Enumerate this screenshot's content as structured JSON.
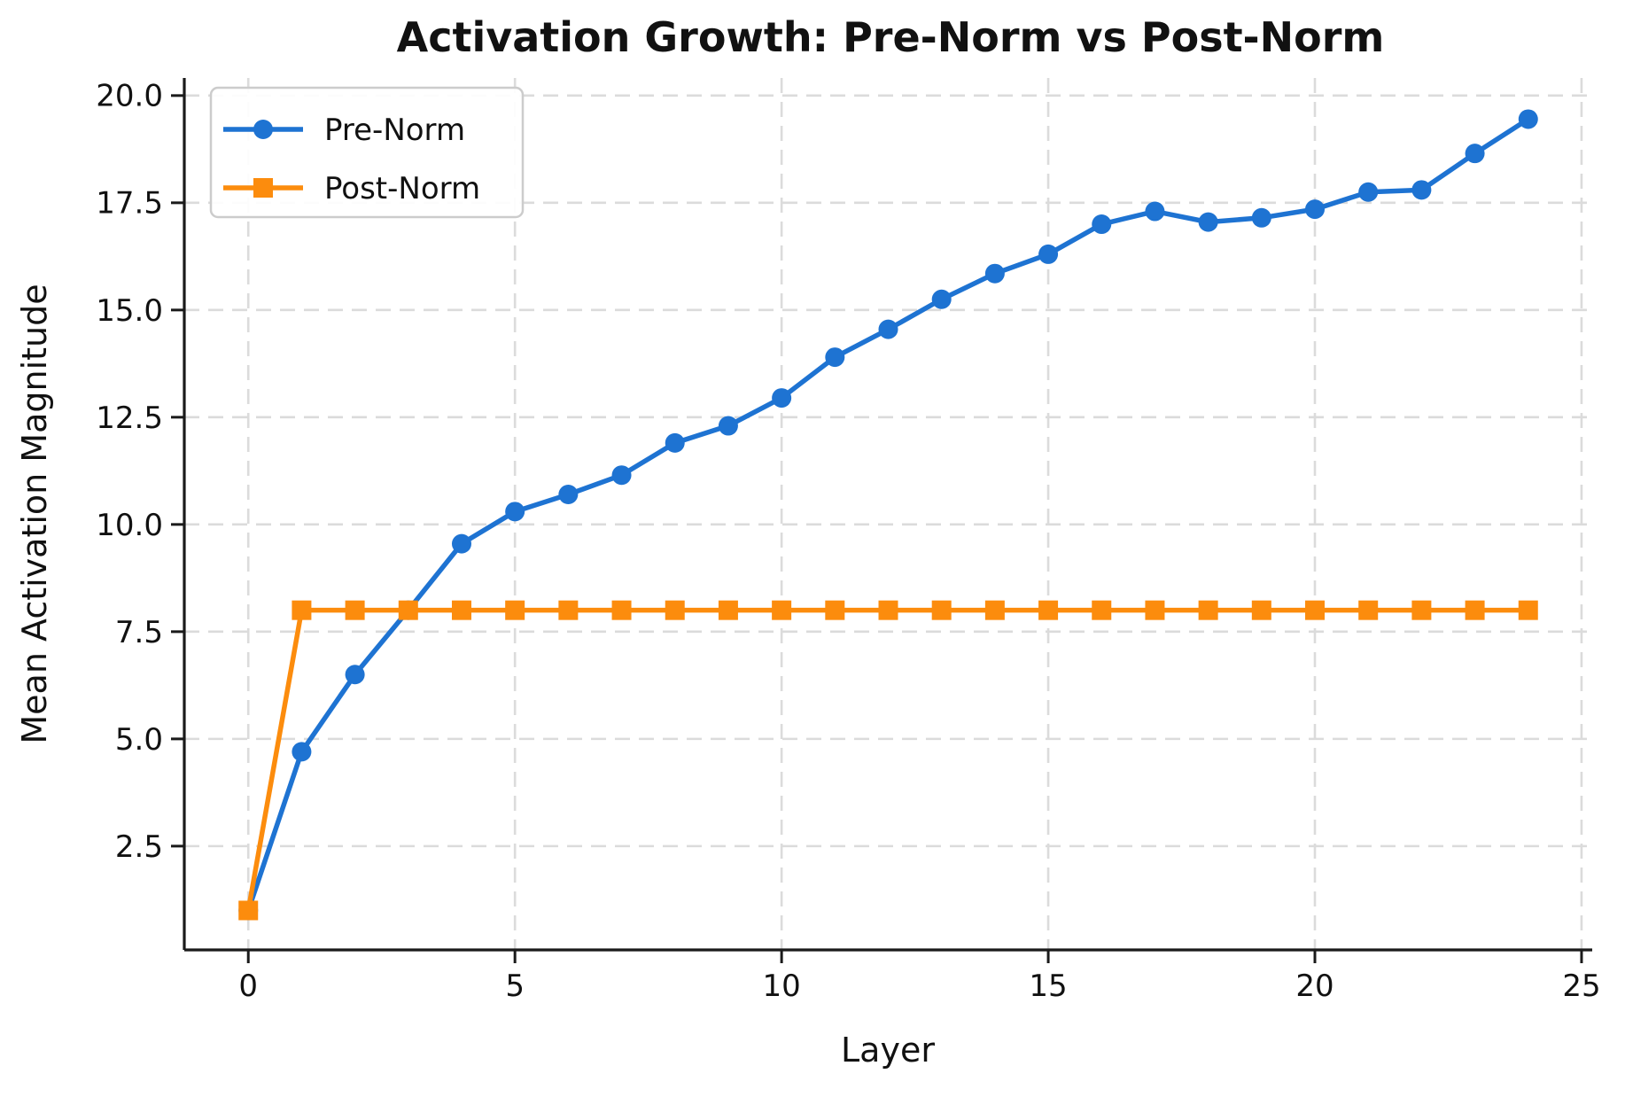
{
  "chart_data": {
    "type": "line",
    "title": "Activation Growth: Pre-Norm vs Post-Norm",
    "xlabel": "Layer",
    "ylabel": "Mean Activation Magnitude",
    "x": [
      0,
      1,
      2,
      3,
      4,
      5,
      6,
      7,
      8,
      9,
      10,
      11,
      12,
      13,
      14,
      15,
      16,
      17,
      18,
      19,
      20,
      21,
      22,
      23,
      24
    ],
    "series": [
      {
        "name": "Pre-Norm",
        "color": "#1e73d2",
        "marker": "circle",
        "values": [
          1.0,
          4.7,
          6.5,
          8.0,
          9.55,
          10.3,
          10.7,
          11.15,
          11.9,
          12.3,
          12.95,
          13.9,
          14.55,
          15.25,
          15.85,
          16.3,
          17.0,
          17.3,
          17.05,
          17.15,
          17.35,
          17.75,
          17.8,
          18.65,
          19.45
        ]
      },
      {
        "name": "Post-Norm",
        "color": "#fc8c0d",
        "marker": "square",
        "values": [
          1.0,
          8.0,
          8.0,
          8.0,
          8.0,
          8.0,
          8.0,
          8.0,
          8.0,
          8.0,
          8.0,
          8.0,
          8.0,
          8.0,
          8.0,
          8.0,
          8.0,
          8.0,
          8.0,
          8.0,
          8.0,
          8.0,
          8.0,
          8.0,
          8.0
        ]
      }
    ],
    "xlim": [
      -1.2,
      25.2
    ],
    "ylim": [
      0.08,
      20.41
    ],
    "xticks": {
      "values": [
        0,
        5,
        10,
        15,
        20,
        25
      ],
      "labels": [
        "0",
        "5",
        "10",
        "15",
        "20",
        "25"
      ]
    },
    "yticks": {
      "values": [
        2.5,
        5.0,
        7.5,
        10.0,
        12.5,
        15.0,
        17.5,
        20.0
      ],
      "labels": [
        "2.5",
        "5.0",
        "7.5",
        "10.0",
        "12.5",
        "15.0",
        "17.5",
        "20.0"
      ]
    },
    "grid": true,
    "grid_style": "dashed",
    "legend_position": "upper left"
  },
  "style": {
    "background": "#ffffff",
    "grid_color": "#dbdbdb",
    "spine_color": "#1a1a1a",
    "text_color": "#111111",
    "legend_border_color": "#cccccc",
    "legend_background": "#ffffff"
  }
}
